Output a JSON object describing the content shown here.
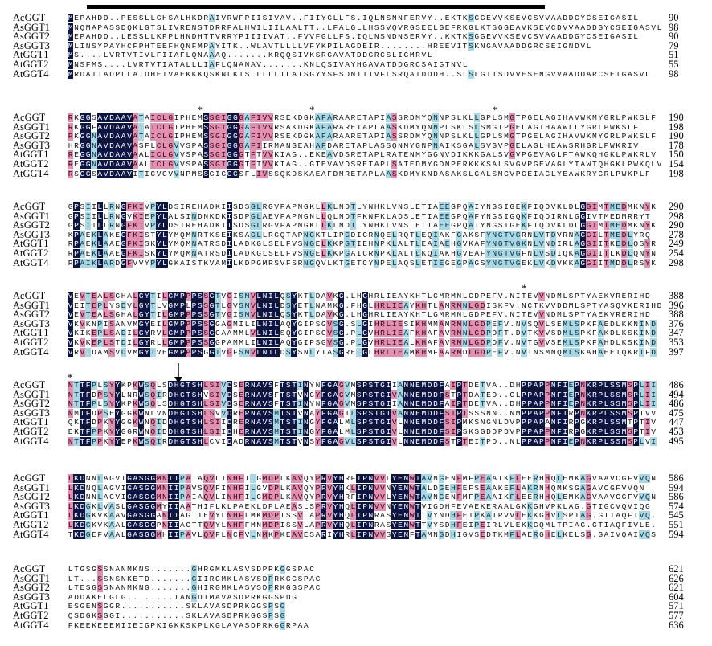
{
  "alignment": {
    "row_labels": [
      "AcGGT",
      "AsGGT1",
      "AsGGT2",
      "AsGGT3",
      "AtGGT1",
      "AtGGT2",
      "AtGGT4"
    ],
    "blocks": [
      {
        "rows": [
          {
            "seq": "MEPAHDD..PESSLLGHSALHKDRAIVRWFPIISIVAV..FIIYGLLFS.IQLNSNNFERVY..EKTKSGGEVVKSEVCSVVAADDGYCSEIGASIL",
            "end": "90"
          },
          {
            "seq": "MNQMAPASSDQKLGTSLIVRENSTDRRFALHWILIILAALTT..LFALGLLHSSVQVRGSEELGEFRKGLKTSGGEAVKSEVCDVVAADDGYCSEIGASVL",
            "end": "98"
          },
          {
            "seq": "MEPAHDD..LESSLLKPPLHNDHTTVRRYPIIIIVAT..FVVFGLLFS.IQLNSNDNSERVY..KKTKSGGEVVKSEVCSVVAADDGYCSEIGASIL",
            "end": "90"
          },
          {
            "seq": "MLINSYPAYHCFPHTEEFHQNFMPAYITK..WLAVTLLLLVFYKPILAGDEIR........HREEVITSKNGAVAADDGRCSEIGNDVL",
            "end": "79"
          },
          {
            "seq": "MS....LVRTVTIVLFIIAFLQNAAAQ.......KRQQSIVKSRGAVATDDGRCSLIGMRVL",
            "end": "51"
          },
          {
            "seq": "MNSFMS....LVRTVTIATALLLIAFLQNANAV.......KNLQSIVAYHGAVATDDGRCSAIGTNVL",
            "end": "55"
          },
          {
            "seq": "MRDAIIADPLLAIDHETVAEKKKQSKNLKISLLLLLILATSGYYSFSDNITTVFLSRQAIDDDH..SLSLGTISDVVESENGVVAADDARCSEIGASVL",
            "end": "98"
          }
        ],
        "stars": []
      },
      {
        "rows": [
          {
            "seq": "RKGGSAVDAAVATAICLGIPHEMSSGIGGGAFIVVRSEKDGKAFARAARETAPIASSRDMYQNNPSLKLLGPLSMGTPGELAGIHAVWKMYGRLPWKSLF",
            "end": "190"
          },
          {
            "seq": "RKGGFAVDAAVATAICLGIPHEMSSGIGGGAFIVVRSAKDGKAFARARETAPLAASKDMYQNNPLSKLSLSMGTPGELAGIHAAWLLYGRLPWKSLF",
            "end": "198"
          },
          {
            "seq": "RKGGNAVDAAVATAICLGIPHEMSSGIGGGAFIVVRSEKDGKAFARAARETAPIASSRDMYQNNPSLKLLGPLSMGTPGELAGIHAVWKMYGRLPWKSLF",
            "end": "190"
          },
          {
            "seq": "HRGGNAVDAAVASFLCLGVVSPASSGIGGGAFIIRMANGEAHAFDARETAPLASSQNMYGNPNAIKSGALSVGVPGELAGLHEAWSRHGRLPWKRIV",
            "end": "178"
          },
          {
            "seq": "REGGNAVDAAVAALICLGVVSPASSGIGGGTFTVVKIAG..EKEAVDSRETAPLRATENMYGGNVDIKKKGALSVGVPGEVAGLFTAWKQHGKLPWKRLV",
            "end": "150"
          },
          {
            "seq": "REGGNAVDAAVAALICLGVVSPASSGIGGGTFTVVKIAG..GTEVAVDSRETAPLSATEDMYGDNPERKKKSALSVGVPGEVAGLYTAWTQHGKLPWKQLV",
            "end": "154"
          },
          {
            "seq": "RSGGSAVDAAVITICVGVVNPMSSGIGGGSFLIVSSQKDSKAEAFDMRETAPLAASKDMYKNDASAKSLGALSMGVPGEIAGLYEAWKRYGRLPWKPLF",
            "end": "198"
          }
        ],
        "stars": [
          22,
          41,
          72
        ]
      },
      {
        "rows": [
          {
            "seq": "GPSIILLRNGFKIVPYLDSIREHADKIISDSGLRGVFAPNGKLLKLNDTLYNHKLVNSLETIAEEGPQAIYNGSIGEKFIQDVKLDLGGIMTMEDMKNYK",
            "end": "290"
          },
          {
            "seq": "GPSIILLRNGVKIEPYLALSINDNKDKISDPGLAEVFAPNGNLLQLNDTFKNFKLADSLETIAEEGPQAFYNGSIGQKFIQDIRNLGGIVTMEDMRRYT",
            "end": "298"
          },
          {
            "seq": "GPSIILLRNGFKIVPYLDSIREHADKIISDSGLRGVFAPNGKLLKLNDTLYNHKLVNSLETIAEEGPQAIYNGSIGEKFIQDVKLDLGGIMTMEDMKNYK",
            "end": "290"
          },
          {
            "seq": "KPAEKLAKEGFKISTYLYMQMNRTKSEIKSAGLLRGQTAPNGKTLIPGDICRNQELRQTLEQIAKFGAKSFYNGTVGRNLVTDVRNAGGILTMEDLYRQ",
            "end": "278"
          },
          {
            "seq": "RPAEKLAAEGFKISKYLYMQMNATRSDILADKGLSELFVSNGELKKPGTIEHNPKLALTLEAIAEHGVKAFYNGTVGKNLVNDIRLAGGIITKEDLQSYR",
            "end": "249"
          },
          {
            "seq": "RPAEKLAAEGFKISKYLYMQMNATRSDILADKGLSELFVSNGELKKPGAICRNPKLALTLKQIAKHGVEAFYNGTVGFNLVSDIQKAGGIITLKDLQNYN",
            "end": "254"
          },
          {
            "seq": "RPAIKLARDGFVVYPYLGKAISTKVAMILKDPGMRSVFSRNGQVLKTGETCYNPELAQSLETIEGEGPAGSYNGTVGEKLVKDVKKAGGIITMDDLRSYK",
            "end": "298"
          }
        ],
        "stars": []
      },
      {
        "rows": [
          {
            "seq": "VEVTEALSGHALGYTILGMPPPSSGTVGISMVLNILQSYKTLDAVKG.LHGHRLIEAYKHTLGMRMNLGDPEFV.NITEVVNDMLSPTYAEKVRERIHD",
            "end": "388"
          },
          {
            "seq": "VEITEPLYSDVLGYTLVGMPLPSSGTLGVSMVLNILDSYETLNAMKG.FHGLHRLIEAYKHTLAMRMNLGDISKFV.NCTKVVDDMLSPTYASQVKERIHD",
            "end": "396"
          },
          {
            "seq": "VEVTEALSGHALGYTILGMPPPSSGTVGISMVLNILQSYKTLDAVKG.LHGHRLIEAYKHTLGMRMNLGDPEFV.NITEVVNDMLSPTYAEKVRERIHD",
            "end": "388"
          },
          {
            "seq": "VKVKNPISANVMGYEILGMPPPSSGGAGMILILNILAQYGIPSGVSG.SLGIHRLIESIKHMMAMRMNLGDPEFV.NVSQVLSEMLSPKFAEDLKKNIND",
            "end": "376"
          },
          {
            "seq": "VKIKEPLSADILGYRVLGMPPPSSGGAAMMLVLNILSQYGIPSGVSG.PLGVHRLIEAFKHAFAVRMNLGDPDFT.DVTKVVSDMLSPKFAKDLKSKIND",
            "end": "347"
          },
          {
            "seq": "VKVKEPLSTDILGYRLLGMPPPSSGGPAMMLILNILAQYGIPSGVSG.PLGVHRLIEALKHAFAVRMNLGDPDFV.NVTGVVSEMLSPKFAHDLKSKIND",
            "end": "353"
          },
          {
            "seq": "VRVTDAMSVDVMGYTVHGMPPPSGGTVGFSMVLNILDSYSNLYTASGRELGLHRLIEAMKHMFAARMDLGDPEFV.NVTNSMNQMLSKAHAEEIQKRIFD",
            "end": "397"
          }
        ],
        "stars": [
          77
        ]
      },
      {
        "rows": [
          {
            "seq": "NTTFPLSYYKPKWSQLSDHGTSHLSIVDSERNAVSFTSTINYNFGAGVMSPSTGIIANNEMDDFAIPTDETVA..DHPPAPPNFIEPNKRPLSSMSPLII",
            "end": "486"
          },
          {
            "seq": "NTTFDPSYYLNRWSQIRDHGTSHVSIVDSERNAVSFTSTVNGYFGAGVMSPSTGIVANNEMDDFSTPTDATED..GLPPAPPNFIEPNKRPLSSMSPLII",
            "end": "494"
          },
          {
            "seq": "NTTFPLSYYKPKWSQLSDHGTSHLSIVDSERNAVSFTSTINYNFGAGVMSPSTGIIANNEMDDFAIPTDETVA..DHPPAPPNFIEPNKRPLSSMSPLII",
            "end": "486"
          },
          {
            "seq": "NMTFDPSHYGGKWNLVNDHGTSHLSVVDRERNAVSMTSTVNAYFGAGILSPSTGIVANNEMDDFSIPTSSSNN..NMPPAPPNFIRPNKRPLSSMSPTVV",
            "end": "475"
          },
          {
            "seq": "QKTFDPKYYGGKWNQIDDHGTSHLSIIDRERNAVSMTSTINGYFGALMLSPSTGIVLNNEMDDFSIPMKSNGNLDVPPPAPANFIRPGKRPLSSMTPTIV",
            "end": "447"
          },
          {
            "seq": "EKTFPPKYYGGRWNQIDDHGTSHLSIIDHERNAVSMTSTINGYFGALMLSPSTGIVLNNEMDDFSIPSKSGDDPDVPPPAPPNFIRPGKRPLSSMSPTIV",
            "end": "453"
          },
          {
            "seq": "NTTFPPKYYEPKWSQIRDHGTSHLCVIDADRNAVSMTSTVNSYFGAGVLSPSTGIVLNNEMDDFSTPTEITPD..NLPPAPPNFIEPNKRPLSSMSPLVI",
            "end": "495"
          }
        ],
        "stars": [
          0
        ]
      },
      {
        "rows": [
          {
            "seq": "LKDNNLAGVIGASGGMNIIPAIAQVLINHFILGMDPLKAVQYPRVYHRFIPNVVLYENWTAVNGENFMFPEAAIKFLEERHHQLEMKAGVAAVCGFVVQN",
            "end": "586"
          },
          {
            "seq": "LKDNQLAGVIGASGGMNIIPAVSQVFINHFILGVDPLKAVQYPRVYHKLIPNVVNYENWTALDGEHFEFSEAAKEFLAKRNHQMKSGAGAVCGFVVQN",
            "end": "594"
          },
          {
            "seq": "LKDNNLAGVIGASGGMNIIPAIAQVLINHFILGMDPLKAVQYPRVYHRFIPNVVLYENWTAVNGENFMFPEAAIKFLEERHHQLEMKAGVAAVCGFVVQN",
            "end": "586"
          },
          {
            "seq": "LKDGKLVASLGASGGMYIIAATHIFLKLPAEKLDPLAEASLSPRVYHQLIPNVVNYENWTVIGDHFEVAEKERAALGKKGHVPKLAG.GTIGCVQVIQG",
            "end": "574"
          },
          {
            "seq": "LKDGKVKAAVGASGGANIIAGTTEVYLNHFLMKMDPISSVLAPRVYHQLIPNRASYENWTTVYNDHFEIPKATRVVLEKKGHVLSPIAG.GTIAQFIVQ.",
            "end": "545"
          },
          {
            "seq": "LKDGKVKAALGASGGPNIIAGTTQVYLNHFFMNMDPISSVLAPRVYHQLIPNRASYENWTTVYSDHFEIPEIRLVLEKKGQMLTPIAG.GTIAQFIVLE.",
            "end": "551"
          },
          {
            "seq": "TKDGEFVAALGASGGMHIIPAVLQVFLNCFVLNMKPKEAVESARIYHRLIPNVVSYENFTAMNGDHIGVSEDTKMFLAERGHELKELSG.GAIVQAIVQS",
            "end": "594"
          }
        ],
        "stars": []
      },
      {
        "rows": [
          {
            "seq": "LTGSGSSNANMKNS.......GHRGMKLASVSDPRKGGSPAC",
            "end": "621"
          },
          {
            "seq": "LT...SSNSNKETD.......GIIRGMKLASVSDPRKGGSPAC",
            "end": "626"
          },
          {
            "seq": "LTESGSSNANMKNG.......GHIRGMKLASVSDPRKGGSPAC",
            "end": "621"
          },
          {
            "seq": "ADDAKELGLG........IANGDIMAVASDPRKGGSPDG",
            "end": "604"
          },
          {
            "seq": "ESGENSGGR...........SKLAVASDPRKGGSPSG",
            "end": "571"
          },
          {
            "seq": "QSDGKSGGI...........SKLAVASDPRKGGSPSG",
            "end": "577"
          },
          {
            "seq": "FKEEKEEEMIIEIGPKIGKKSKPLKGLAVASDPRKGGRPAA",
            "end": "636"
          }
        ],
        "stars": []
      }
    ]
  },
  "colors": {
    "identical": "#0d1545",
    "high_similarity": "#e58fb0",
    "low_similarity": "#a8d8e6",
    "signal_bar": "#000000"
  }
}
